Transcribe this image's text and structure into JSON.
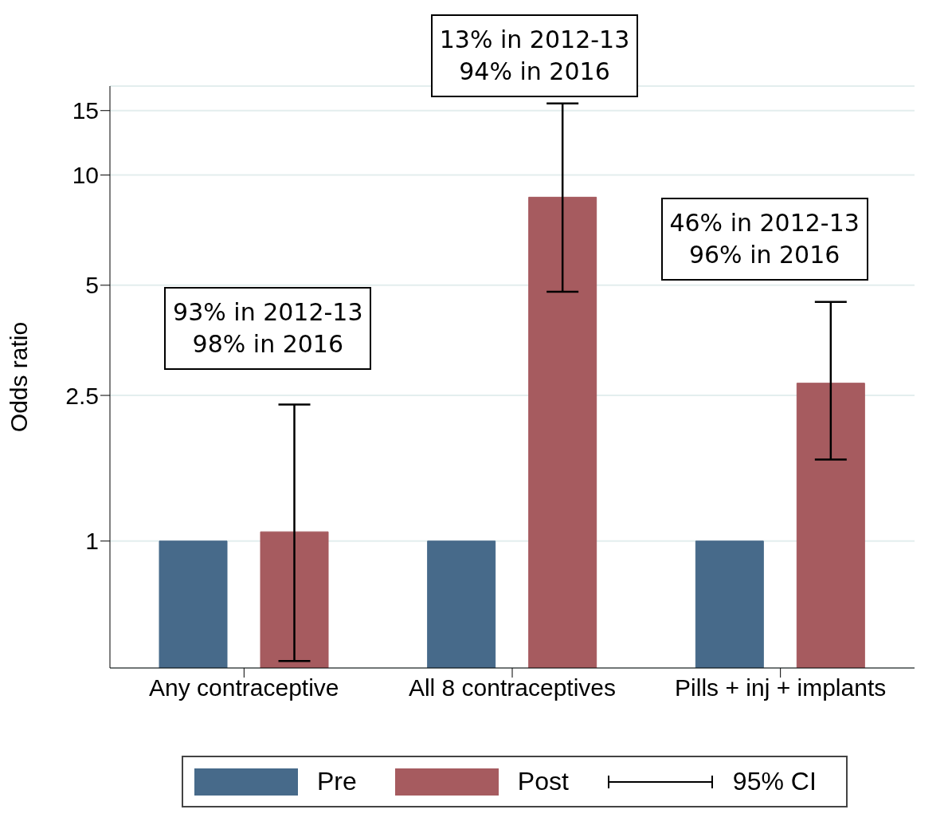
{
  "chart_data": {
    "type": "bar",
    "ylabel": "Odds ratio",
    "log": "y",
    "categories": [
      "Any contraceptive",
      "All 8 contraceptives",
      "Pills + inj + implants"
    ],
    "series": [
      {
        "name": "Pre",
        "color": "#476a8a",
        "values": [
          1,
          1,
          1
        ]
      },
      {
        "name": "Post",
        "color": "#a65b5f",
        "values": [
          1.06,
          8.7,
          2.7
        ],
        "errors": [
          [
            0.47,
            2.36
          ],
          [
            4.8,
            15.7
          ],
          [
            1.67,
            4.5
          ]
        ]
      }
    ],
    "ylim": [
      0.45,
      17.5
    ],
    "yticks": [
      1,
      2.5,
      5,
      10,
      15
    ],
    "grid": "y",
    "legend": "bottom",
    "annotations": [
      "93% in 2012-13\n98% in 2016",
      "13% in 2012-13\n94% in 2016",
      "46% in 2012-13\n96% in 2016",
      "95% CI"
    ]
  }
}
